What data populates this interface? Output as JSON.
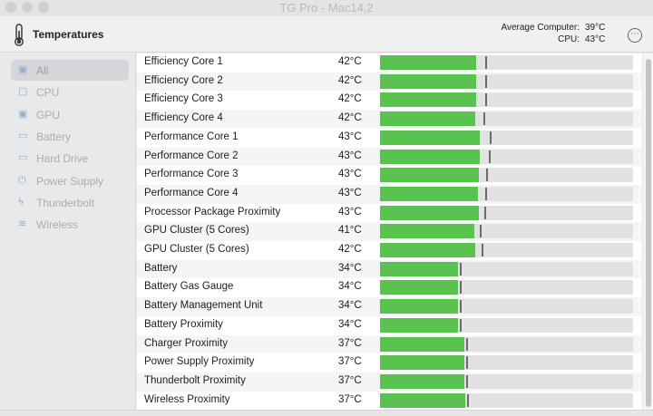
{
  "window": {
    "title": "TG Pro - Mac14,2"
  },
  "header": {
    "title": "Temperatures",
    "average_computer_label": "Average Computer:",
    "average_computer_value": "39°C",
    "cpu_label": "CPU:",
    "cpu_value": "43°C",
    "more_icon": "ellipsis-circle-icon",
    "more_glyph": "⋯"
  },
  "sidebar": {
    "items": [
      {
        "label": "All",
        "icon": "grid-icon",
        "glyph": "▣",
        "selected": true
      },
      {
        "label": "CPU",
        "icon": "cpu-icon",
        "glyph": "▢"
      },
      {
        "label": "GPU",
        "icon": "gpu-icon",
        "glyph": "▣"
      },
      {
        "label": "Battery",
        "icon": "battery-icon",
        "glyph": "▭"
      },
      {
        "label": "Hard Drive",
        "icon": "hard-drive-icon",
        "glyph": "▭"
      },
      {
        "label": "Power Supply",
        "icon": "power-icon",
        "glyph": "⏻"
      },
      {
        "label": "Thunderbolt",
        "icon": "bolt-icon",
        "glyph": "ϟ"
      },
      {
        "label": "Wireless",
        "icon": "wifi-icon",
        "glyph": "≋"
      }
    ]
  },
  "sensors": [
    {
      "name": "Efficiency Core 1",
      "temp": "42°C",
      "level": 0.38,
      "max": 0.415
    },
    {
      "name": "Efficiency Core 2",
      "temp": "42°C",
      "level": 0.38,
      "max": 0.417
    },
    {
      "name": "Efficiency Core 3",
      "temp": "42°C",
      "level": 0.38,
      "max": 0.415
    },
    {
      "name": "Efficiency Core 4",
      "temp": "42°C",
      "level": 0.378,
      "max": 0.41
    },
    {
      "name": "Performance Core 1",
      "temp": "43°C",
      "level": 0.393,
      "max": 0.435
    },
    {
      "name": "Performance Core 2",
      "temp": "43°C",
      "level": 0.393,
      "max": 0.43
    },
    {
      "name": "Performance Core 3",
      "temp": "43°C",
      "level": 0.39,
      "max": 0.42
    },
    {
      "name": "Performance Core 4",
      "temp": "43°C",
      "level": 0.388,
      "max": 0.417
    },
    {
      "name": "Processor Package Proximity",
      "temp": "43°C",
      "level": 0.39,
      "max": 0.413
    },
    {
      "name": "GPU Cluster (5 Cores)",
      "temp": "41°C",
      "level": 0.374,
      "max": 0.395
    },
    {
      "name": "GPU Cluster (5 Cores)",
      "temp": "42°C",
      "level": 0.378,
      "max": 0.4
    },
    {
      "name": "Battery",
      "temp": "34°C",
      "level": 0.31,
      "max": 0.315
    },
    {
      "name": "Battery Gas Gauge",
      "temp": "34°C",
      "level": 0.31,
      "max": 0.315
    },
    {
      "name": "Battery Management Unit",
      "temp": "34°C",
      "level": 0.31,
      "max": 0.315
    },
    {
      "name": "Battery Proximity",
      "temp": "34°C",
      "level": 0.31,
      "max": 0.315
    },
    {
      "name": "Charger Proximity",
      "temp": "37°C",
      "level": 0.335,
      "max": 0.34
    },
    {
      "name": "Power Supply Proximity",
      "temp": "37°C",
      "level": 0.335,
      "max": 0.34
    },
    {
      "name": "Thunderbolt Proximity",
      "temp": "37°C",
      "level": 0.335,
      "max": 0.34
    },
    {
      "name": "Wireless Proximity",
      "temp": "37°C",
      "level": 0.337,
      "max": 0.343
    }
  ],
  "colors": {
    "bar_fill": "#5ac34f",
    "bar_track": "#e2e2e2",
    "marker": "#6b6b6b"
  }
}
